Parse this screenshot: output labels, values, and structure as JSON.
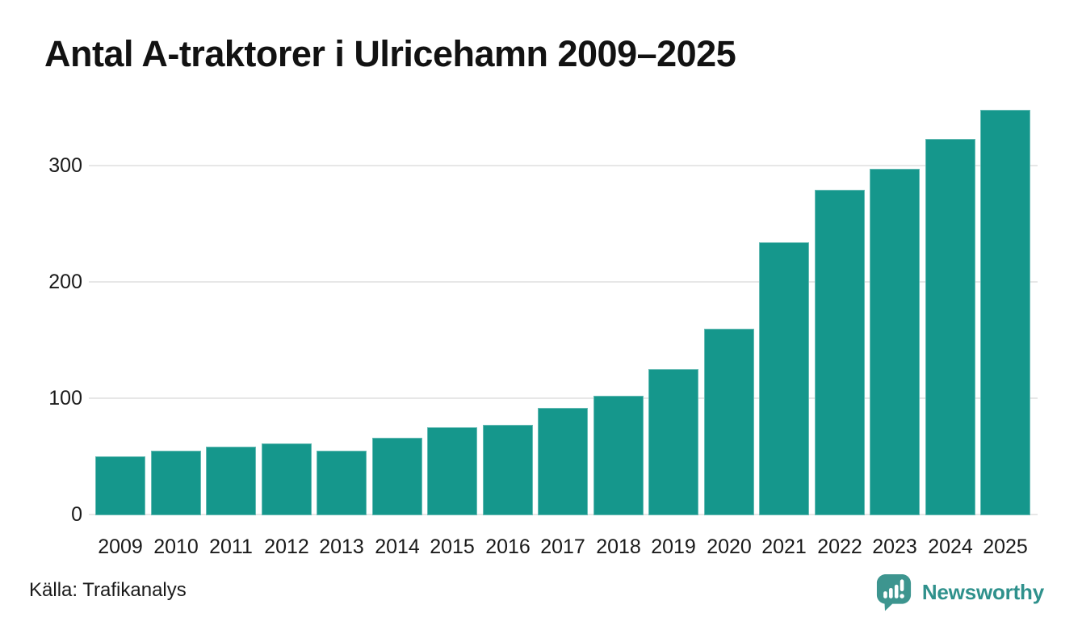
{
  "title": "Antal A-traktorer i Ulricehamn 2009–2025",
  "source": {
    "label": "Källa: Trafikanalys"
  },
  "branding": {
    "name": "Newsworthy",
    "icon": "newsworthy-bubble-chart-icon",
    "text_color": "#2F918C",
    "icon_color": "#3D958F"
  },
  "colors": {
    "bar": "#15978C",
    "gridline": "#E7E7E7",
    "axis_text": "#1A1A1A",
    "title_text": "#121212",
    "background": "#FFFFFF"
  },
  "chart_data": {
    "type": "bar",
    "title": "Antal A-traktorer i Ulricehamn 2009–2025",
    "categories": [
      "2009",
      "2010",
      "2011",
      "2012",
      "2013",
      "2014",
      "2015",
      "2016",
      "2017",
      "2018",
      "2019",
      "2020",
      "2021",
      "2022",
      "2023",
      "2024",
      "2025"
    ],
    "values": [
      50,
      55,
      58,
      61,
      55,
      66,
      75,
      77,
      92,
      102,
      125,
      160,
      234,
      279,
      297,
      323,
      348
    ],
    "xlabel": "",
    "ylabel": "",
    "ylim": [
      0,
      360
    ],
    "yticks": [
      0,
      100,
      200,
      300
    ],
    "grid": true,
    "legend": false,
    "bar_color": "#15978C",
    "source_caption": "Källa: Trafikanalys"
  }
}
